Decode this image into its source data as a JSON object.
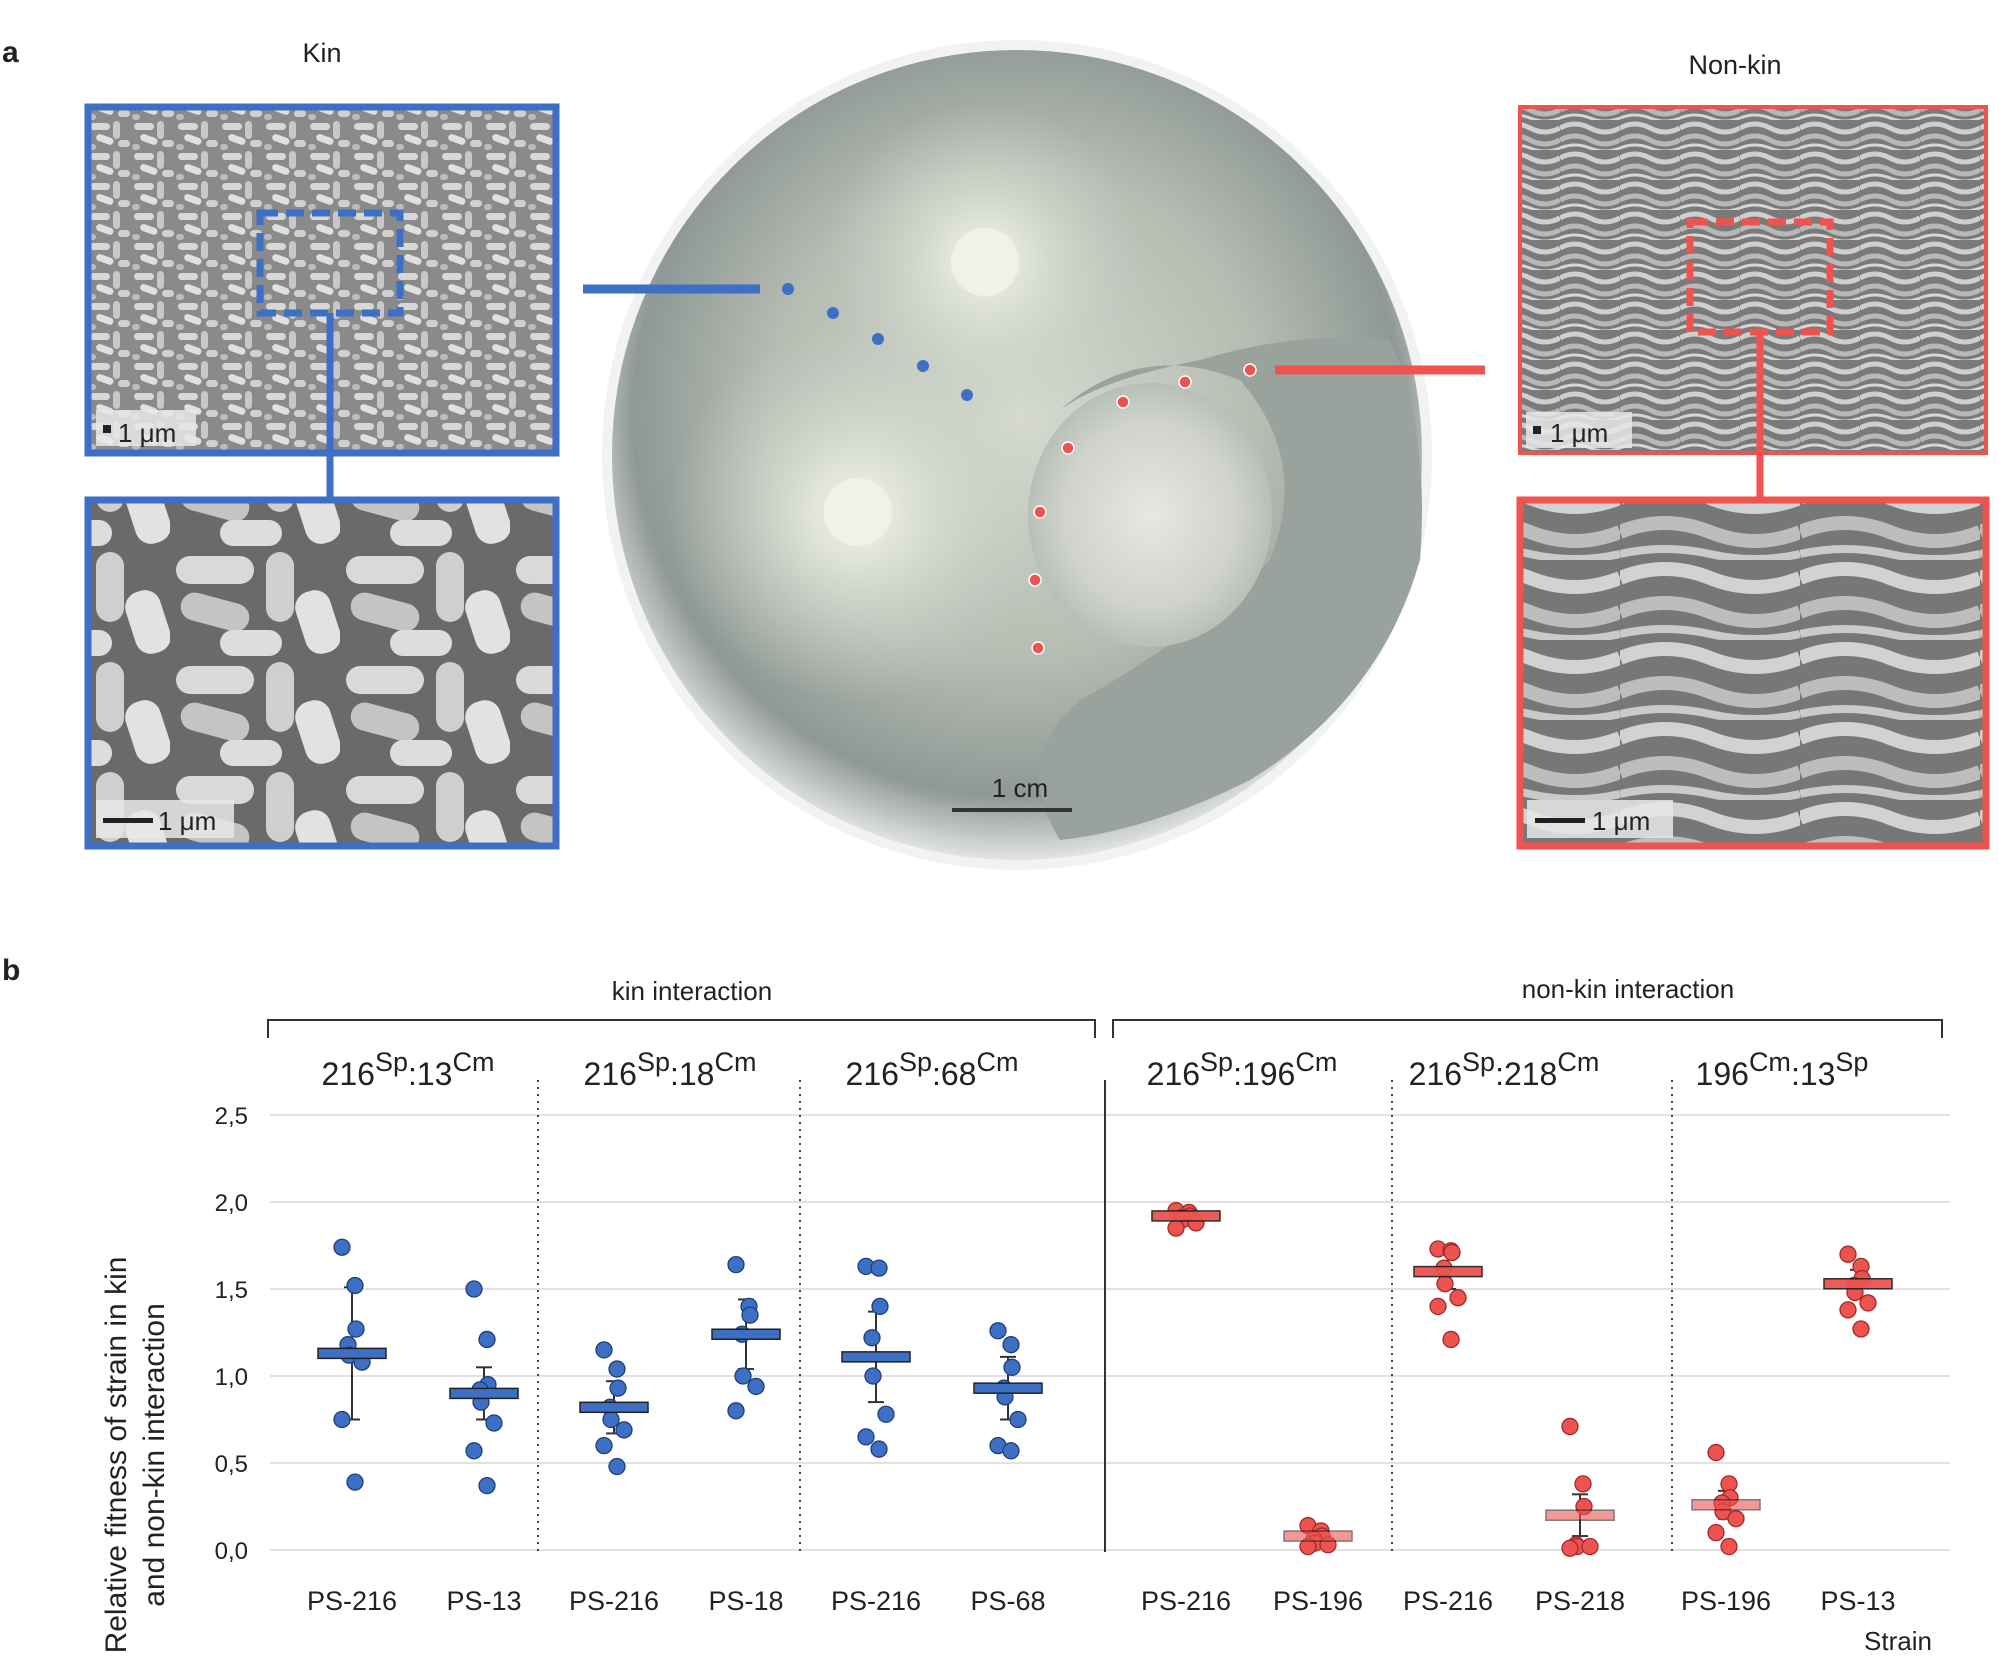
{
  "panel_a": {
    "letter": "a",
    "kin_label": "Kin",
    "nonkin_label": "Non-kin",
    "scale_kin_top": "1 μm",
    "scale_kin_bottom": "1 μm",
    "scale_nonkin_top": "1 μm",
    "scale_nonkin_bottom": "1 μm",
    "scale_plate": "1 cm",
    "colors": {
      "kin": "#3d6fc4",
      "nonkin": "#ef5350"
    }
  },
  "panel_b": {
    "letter": "b",
    "kin_group": "kin interaction",
    "nonkin_group": "non-kin interaction",
    "ylabel_line1": "Relative fitness of strain in kin",
    "ylabel_line2": "and non-kin interaction",
    "xlabel": "Strain"
  },
  "chart_data": {
    "type": "scatter",
    "ylim": [
      0,
      2.5
    ],
    "yticks": [
      "0,0",
      "0,5",
      "1,0",
      "1,5",
      "2,0",
      "2,5"
    ],
    "grid": true,
    "pairs": [
      {
        "base": "216",
        "sup1": "Sp",
        "mid": ":13",
        "sup2": "Cm",
        "group": "kin",
        "strains": [
          {
            "label": "PS-216",
            "mean": 1.13,
            "err": 0.38,
            "points": [
              1.74,
              1.52,
              1.27,
              1.18,
              1.12,
              1.08,
              0.75,
              0.39
            ]
          },
          {
            "label": "PS-13",
            "mean": 0.9,
            "err": 0.15,
            "points": [
              1.5,
              1.21,
              0.95,
              0.92,
              0.85,
              0.73,
              0.57,
              0.37
            ]
          }
        ]
      },
      {
        "base": "216",
        "sup1": "Sp",
        "mid": ":18",
        "sup2": "Cm",
        "group": "kin",
        "strains": [
          {
            "label": "PS-216",
            "mean": 0.82,
            "err": 0.15,
            "points": [
              1.15,
              1.04,
              0.93,
              0.82,
              0.75,
              0.69,
              0.6,
              0.48
            ]
          },
          {
            "label": "PS-18",
            "mean": 1.24,
            "err": 0.2,
            "points": [
              1.64,
              1.4,
              1.35,
              1.24,
              1.0,
              0.94,
              0.8
            ]
          }
        ]
      },
      {
        "base": "216",
        "sup1": "Sp",
        "mid": ":68",
        "sup2": "Cm",
        "group": "kin",
        "strains": [
          {
            "label": "PS-216",
            "mean": 1.11,
            "err": 0.26,
            "points": [
              1.63,
              1.62,
              1.4,
              1.22,
              1.0,
              0.78,
              0.65,
              0.58
            ]
          },
          {
            "label": "PS-68",
            "mean": 0.93,
            "err": 0.18,
            "points": [
              1.26,
              1.18,
              1.05,
              0.93,
              0.88,
              0.75,
              0.6,
              0.57
            ]
          }
        ]
      },
      {
        "base": "216",
        "sup1": "Sp",
        "mid": ":196",
        "sup2": "Cm",
        "group": "nonkin",
        "strains": [
          {
            "label": "PS-216",
            "mean": 1.92,
            "err": 0.04,
            "points": [
              1.95,
              1.94,
              1.92,
              1.91,
              1.9,
              1.88,
              1.85
            ]
          },
          {
            "label": "PS-196",
            "mean": 0.08,
            "err": 0.05,
            "points": [
              0.14,
              0.11,
              0.08,
              0.06,
              0.04,
              0.03,
              0.02
            ]
          }
        ]
      },
      {
        "base": "216",
        "sup1": "Sp",
        "mid": ":218",
        "sup2": "Cm",
        "group": "nonkin",
        "strains": [
          {
            "label": "PS-216",
            "mean": 1.6,
            "err": 0.1,
            "points": [
              1.73,
              1.72,
              1.71,
              1.62,
              1.53,
              1.45,
              1.4,
              1.21
            ]
          },
          {
            "label": "PS-218",
            "mean": 0.2,
            "err": 0.12,
            "points": [
              0.71,
              0.38,
              0.25,
              0.03,
              0.02,
              0.02,
              0.01
            ]
          }
        ]
      },
      {
        "base": "196",
        "sup1": "Cm",
        "mid": ":13",
        "sup2": "Sp",
        "group": "nonkin",
        "strains": [
          {
            "label": "PS-196",
            "mean": 0.26,
            "err": 0.08,
            "points": [
              0.56,
              0.38,
              0.3,
              0.27,
              0.22,
              0.18,
              0.1,
              0.02
            ]
          },
          {
            "label": "PS-13",
            "mean": 1.53,
            "err": 0.08,
            "points": [
              1.7,
              1.63,
              1.56,
              1.52,
              1.48,
              1.42,
              1.38,
              1.27
            ]
          }
        ]
      }
    ]
  }
}
